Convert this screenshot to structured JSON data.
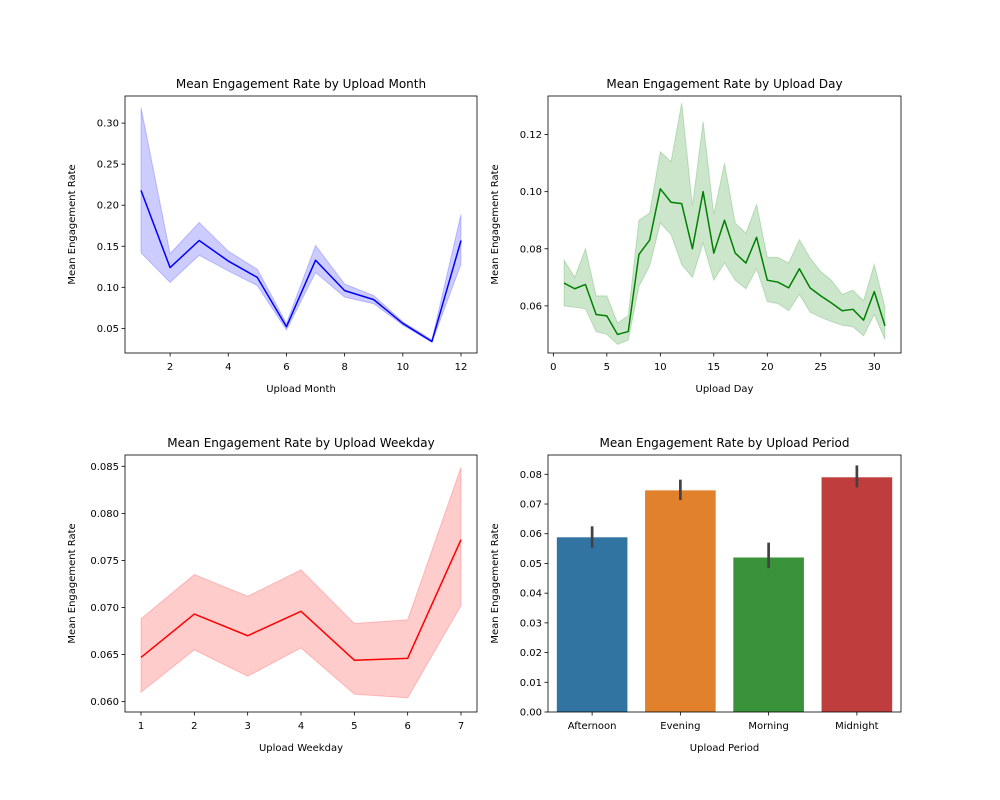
{
  "chart_data": [
    {
      "type": "line",
      "title": "Mean Engagement Rate by Upload Month",
      "xlabel": "Upload Month",
      "ylabel": "Mean Engagement Rate",
      "xlim": [
        0.45,
        12.55
      ],
      "ylim": [
        0.02,
        0.333
      ],
      "xticks": [
        2,
        4,
        6,
        8,
        10,
        12
      ],
      "yticks": [
        0.05,
        0.1,
        0.15,
        0.2,
        0.25,
        0.3
      ],
      "ytick_labels": [
        "0.05",
        "0.10",
        "0.15",
        "0.20",
        "0.25",
        "0.30"
      ],
      "color": "#0000ff",
      "band_color": "#0000ff",
      "series": [
        {
          "x": [
            1,
            2,
            3,
            4,
            5,
            6,
            7,
            8,
            9,
            10,
            11,
            12
          ],
          "values": [
            0.218,
            0.124,
            0.157,
            0.132,
            0.112,
            0.052,
            0.133,
            0.096,
            0.085,
            0.056,
            0.034,
            0.157
          ],
          "lower": [
            0.142,
            0.106,
            0.139,
            0.12,
            0.102,
            0.048,
            0.118,
            0.088,
            0.08,
            0.054,
            0.033,
            0.128
          ],
          "upper": [
            0.319,
            0.141,
            0.179,
            0.144,
            0.122,
            0.056,
            0.151,
            0.104,
            0.09,
            0.058,
            0.036,
            0.189
          ]
        }
      ]
    },
    {
      "type": "line",
      "title": "Mean Engagement Rate by Upload Day",
      "xlabel": "Upload Day",
      "ylabel": "Mean Engagement Rate",
      "xlim": [
        -0.5,
        32.5
      ],
      "ylim": [
        0.0435,
        0.1335
      ],
      "xticks": [
        0,
        5,
        10,
        15,
        20,
        25,
        30
      ],
      "yticks": [
        0.06,
        0.08,
        0.1,
        0.12
      ],
      "ytick_labels": [
        "0.06",
        "0.08",
        "0.10",
        "0.12"
      ],
      "color": "#008000",
      "band_color": "#008000",
      "series": [
        {
          "x": [
            1,
            2,
            3,
            4,
            5,
            6,
            7,
            8,
            9,
            10,
            11,
            12,
            13,
            14,
            15,
            16,
            17,
            18,
            19,
            20,
            21,
            22,
            23,
            24,
            25,
            26,
            27,
            28,
            29,
            30,
            31
          ],
          "values": [
            0.068,
            0.066,
            0.0675,
            0.057,
            0.0565,
            0.05,
            0.051,
            0.078,
            0.083,
            0.101,
            0.0963,
            0.0958,
            0.08,
            0.1,
            0.0785,
            0.09,
            0.0785,
            0.075,
            0.084,
            0.069,
            0.0683,
            0.0663,
            0.073,
            0.0663,
            0.0635,
            0.061,
            0.0583,
            0.0588,
            0.055,
            0.065,
            0.053
          ],
          "lower": [
            0.06,
            0.0595,
            0.059,
            0.051,
            0.05,
            0.0465,
            0.048,
            0.0668,
            0.074,
            0.089,
            0.085,
            0.0745,
            0.07,
            0.082,
            0.069,
            0.075,
            0.069,
            0.066,
            0.073,
            0.0615,
            0.0608,
            0.0583,
            0.064,
            0.0578,
            0.056,
            0.0545,
            0.0532,
            0.0527,
            0.0495,
            0.057,
            0.0483
          ],
          "upper": [
            0.076,
            0.07,
            0.08,
            0.0635,
            0.0635,
            0.054,
            0.0565,
            0.09,
            0.0925,
            0.114,
            0.1105,
            0.131,
            0.095,
            0.1245,
            0.092,
            0.11,
            0.089,
            0.0855,
            0.0955,
            0.077,
            0.077,
            0.075,
            0.0832,
            0.0768,
            0.072,
            0.069,
            0.064,
            0.0655,
            0.0618,
            0.0745,
            0.0595
          ]
        }
      ]
    },
    {
      "type": "line",
      "title": "Mean Engagement Rate by Upload Weekday",
      "xlabel": "Upload Weekday",
      "ylabel": "Mean Engagement Rate",
      "xlim": [
        0.7,
        7.3
      ],
      "ylim": [
        0.0589,
        0.0862
      ],
      "xticks": [
        1,
        2,
        3,
        4,
        5,
        6,
        7
      ],
      "yticks": [
        0.06,
        0.065,
        0.07,
        0.075,
        0.08,
        0.085
      ],
      "ytick_labels": [
        "0.060",
        "0.065",
        "0.070",
        "0.075",
        "0.080",
        "0.085"
      ],
      "color": "#ff0000",
      "band_color": "#ff0000",
      "series": [
        {
          "x": [
            1,
            2,
            3,
            4,
            5,
            6,
            7
          ],
          "values": [
            0.0647,
            0.0693,
            0.067,
            0.0696,
            0.0644,
            0.0646,
            0.0772
          ],
          "lower": [
            0.061,
            0.0655,
            0.0627,
            0.0657,
            0.0608,
            0.0604,
            0.0702
          ],
          "upper": [
            0.0688,
            0.0735,
            0.0712,
            0.074,
            0.0683,
            0.0687,
            0.0849
          ]
        }
      ]
    },
    {
      "type": "bar",
      "title": "Mean Engagement Rate by Upload Period",
      "xlabel": "Upload Period",
      "ylabel": "Mean Engagement Rate",
      "ylim": [
        0,
        0.0865
      ],
      "yticks": [
        0,
        0.01,
        0.02,
        0.03,
        0.04,
        0.05,
        0.06,
        0.07,
        0.08
      ],
      "ytick_labels": [
        "0.00",
        "0.01",
        "0.02",
        "0.03",
        "0.04",
        "0.05",
        "0.06",
        "0.07",
        "0.08"
      ],
      "categories": [
        "Afternoon",
        "Evening",
        "Morning",
        "Midnight"
      ],
      "values": [
        0.0588,
        0.0746,
        0.052,
        0.079
      ],
      "error_low": [
        0.0553,
        0.0713,
        0.0484,
        0.0756
      ],
      "error_high": [
        0.0625,
        0.0782,
        0.057,
        0.083
      ],
      "colors": [
        "#3274a1",
        "#e1812c",
        "#3a923a",
        "#c03d3e"
      ]
    }
  ]
}
